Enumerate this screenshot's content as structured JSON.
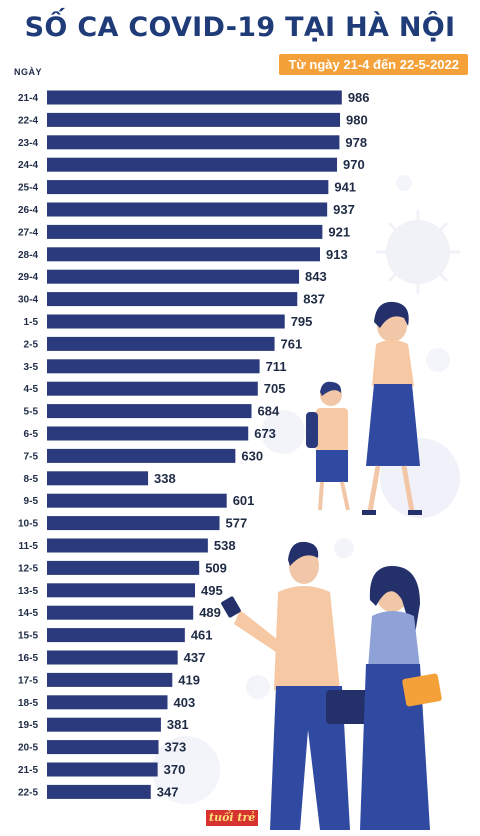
{
  "header": {
    "title": "SỐ CA COVID-19 TẠI HÀ NỘI",
    "date_range": "Từ ngày 21-4 đến 22-5-2022"
  },
  "logo_text": "tuổi trẻ",
  "colors": {
    "title": "#1f3b78",
    "bar": "#2a3a7c",
    "badge": "#f4a13a",
    "label": "#1f2b44"
  },
  "chart_data": {
    "type": "bar",
    "orientation": "horizontal",
    "title": "SỐ CA COVID-19 TẠI HÀ NỘI",
    "subtitle": "Từ ngày 21-4 đến 22-5-2022",
    "ylabel": "NGÀY",
    "xlabel": "",
    "xlim": [
      0,
      1000
    ],
    "grid": false,
    "categories": [
      "21-4",
      "22-4",
      "23-4",
      "24-4",
      "25-4",
      "26-4",
      "27-4",
      "28-4",
      "29-4",
      "30-4",
      "1-5",
      "2-5",
      "3-5",
      "4-5",
      "5-5",
      "6-5",
      "7-5",
      "8-5",
      "9-5",
      "10-5",
      "11-5",
      "12-5",
      "13-5",
      "14-5",
      "15-5",
      "16-5",
      "17-5",
      "18-5",
      "19-5",
      "20-5",
      "21-5",
      "22-5"
    ],
    "values": [
      986,
      980,
      978,
      970,
      941,
      937,
      921,
      913,
      843,
      837,
      795,
      761,
      711,
      705,
      684,
      673,
      630,
      338,
      601,
      577,
      538,
      509,
      495,
      489,
      461,
      437,
      419,
      403,
      381,
      373,
      370,
      347
    ]
  }
}
